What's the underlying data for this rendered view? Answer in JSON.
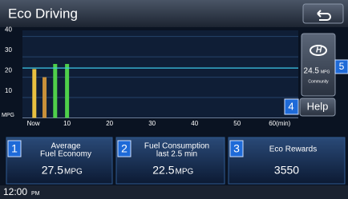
{
  "header": {
    "title": "Eco Driving"
  },
  "chart": {
    "type": "bar",
    "y_label": "MPG",
    "x": [
      2.3,
      4.7,
      7.2,
      10
    ],
    "values": [
      24,
      20,
      26.5,
      26.5
    ],
    "colors": [
      "#e8c040",
      "#c8903a",
      "#4fd04a",
      "#4fd04a"
    ],
    "xlim": [
      -2,
      64
    ],
    "ylim": [
      0,
      43
    ],
    "yticks": [
      10,
      20,
      30,
      40
    ],
    "xticks": [
      {
        "value": 0,
        "label": "Now"
      },
      10,
      20,
      30,
      40,
      50,
      {
        "value": 60,
        "label": "60(min)"
      }
    ],
    "average_line_color": "#3cc8e8"
  },
  "community": {
    "value": 24.5,
    "unit": "MPG",
    "label": "Community",
    "badge": "5"
  },
  "help": {
    "label": "Help",
    "badge": "4"
  },
  "panels": [
    {
      "badge": "1",
      "title": [
        "Average",
        "Fuel Economy"
      ],
      "value": 27.5,
      "unit": "MPG"
    },
    {
      "badge": "2",
      "title": [
        "Fuel Consumption",
        "last 2.5 min"
      ],
      "value": 22.5,
      "unit": "MPG"
    },
    {
      "badge": "3",
      "title": [
        "Eco Rewards"
      ],
      "value": 3550
    }
  ],
  "status": {
    "time": "12:00",
    "ampm": "PM"
  }
}
